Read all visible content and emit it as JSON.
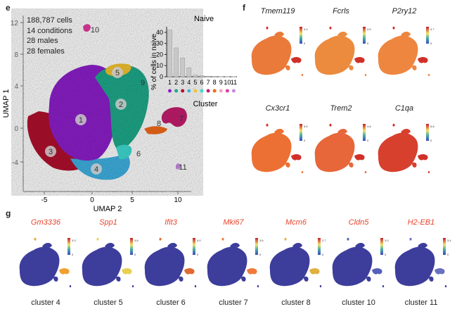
{
  "panels": {
    "e": "e",
    "f": "f",
    "g": "g"
  },
  "umap": {
    "stats": [
      "188,787 cells",
      "14 conditions",
      "28 males",
      "28 females"
    ],
    "xlabel": "UMAP 2",
    "ylabel": "UMAP 1",
    "xticks": [
      "-5",
      "0",
      "5",
      "10"
    ],
    "yticks": [
      "12",
      "8",
      "4",
      "0",
      "-4"
    ],
    "labels": [
      "1",
      "2",
      "3",
      "4",
      "5",
      "6",
      "7",
      "8",
      "9",
      "10",
      "11"
    ],
    "colors": {
      "c1": "#8c1fc9",
      "c2": "#1fa98a",
      "c3": "#b0122e",
      "c4": "#3fb0e0",
      "c5": "#f2c230",
      "c6": "#3fd9d0",
      "c7": "#c21e6e",
      "c8": "#f06a1a",
      "c10": "#e23aa0",
      "c11": "#c58be0"
    }
  },
  "chart_data": {
    "type": "bar",
    "title": "Naive",
    "xlabel": "Cluster",
    "ylabel": "% of cells in naive",
    "categories": [
      "1",
      "2",
      "3",
      "4",
      "5",
      "6",
      "7",
      "8",
      "9",
      "10",
      "11"
    ],
    "values": [
      42,
      26,
      17,
      8,
      1.5,
      1,
      0.5,
      0.3,
      0.2,
      0.1,
      0.1
    ],
    "ylim": [
      0,
      45
    ],
    "yticks": [
      "0",
      "10",
      "20",
      "30",
      "40"
    ],
    "dot_colors": [
      "#8c1fc9",
      "#1fa98a",
      "#b0122e",
      "#3fb0e0",
      "#f2c230",
      "#3fd9d0",
      "#c21e6e",
      "#f06a1a",
      "#f6a0c0",
      "#e23aa0",
      "#c58be0"
    ]
  },
  "panel_f": {
    "genes": [
      "Tmem119",
      "Fcrls",
      "P2ry12",
      "Cx3cr1",
      "Trem2",
      "C1qa"
    ],
    "scale_top": [
      "4.4",
      "4.5",
      "4.7",
      "5.5",
      "4.8",
      "5.8"
    ],
    "scale_bottom": [
      "0",
      "0",
      "0",
      "0",
      "0",
      "0"
    ]
  },
  "panel_g": {
    "genes": [
      "Gm3336",
      "Spp1",
      "Ifit3",
      "Mki67",
      "Mcm6",
      "Cldn5",
      "H2-EB1"
    ],
    "clusters": [
      "cluster 4",
      "cluster 5",
      "cluster 6",
      "cluster 7",
      "cluster 8",
      "cluster 10",
      "cluster 11"
    ],
    "scale_top": [
      "3.3",
      "4.8",
      "4.0",
      "3.6",
      "2.7",
      "3.0",
      "3.4"
    ],
    "scale_bottom": [
      "0",
      "0",
      "0",
      "0",
      "0",
      "0",
      "0"
    ]
  }
}
